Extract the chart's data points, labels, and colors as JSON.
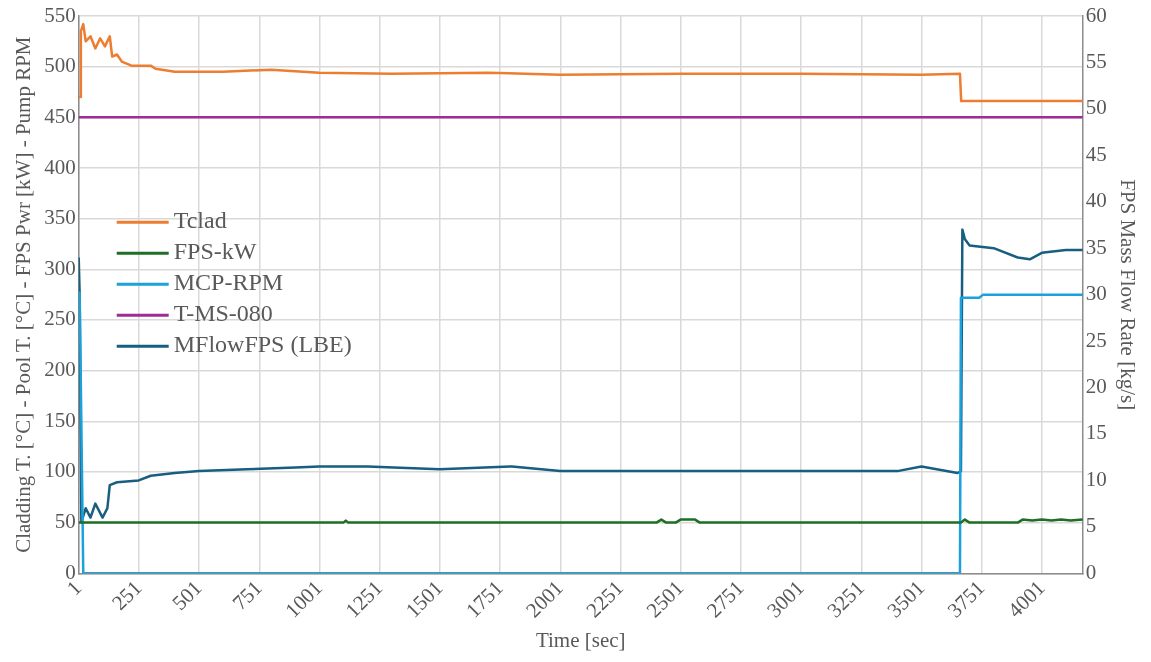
{
  "chart_data": {
    "type": "line",
    "xlabel": "Time [sec]",
    "ylabel": "Cladding T. [°C] - Pool T. [°C] - FPS Pwr [kW] - Pump RPM",
    "y2label": "FPS Mass Flow Rate [kg/s]",
    "xlim": [
      1,
      4170
    ],
    "xticks": [
      1,
      251,
      501,
      751,
      1001,
      1251,
      1501,
      1751,
      2001,
      2251,
      2501,
      2751,
      3001,
      3251,
      3501,
      3751,
      4001
    ],
    "ylim": [
      0,
      550
    ],
    "yticks": [
      0,
      50,
      100,
      150,
      200,
      250,
      300,
      350,
      400,
      450,
      500,
      550
    ],
    "y2lim": [
      0,
      60
    ],
    "y2ticks": [
      0,
      5,
      10,
      15,
      20,
      25,
      30,
      35,
      40,
      45,
      50,
      55,
      60
    ],
    "grid": true,
    "legend": "left",
    "marker": "none",
    "line_style": "solid",
    "series": [
      {
        "name": "Tclad",
        "color": "#ed7d31",
        "x": [
          1,
          8,
          10,
          20,
          30,
          50,
          70,
          90,
          110,
          130,
          140,
          160,
          180,
          220,
          300,
          320,
          400,
          600,
          800,
          1000,
          1300,
          1700,
          2000,
          2500,
          3000,
          3500,
          3660,
          3665,
          4170
        ],
        "values": [
          470,
          470,
          535,
          542,
          525,
          530,
          518,
          528,
          520,
          530,
          510,
          512,
          505,
          501,
          501,
          498,
          495,
          495,
          497,
          494,
          493,
          494,
          492,
          493,
          493,
          492,
          493,
          466,
          466
        ]
      },
      {
        "name": "FPS-kW",
        "color": "#1e6e23",
        "x": [
          1,
          1100,
          1110,
          1120,
          2400,
          2420,
          2440,
          2480,
          2500,
          2560,
          2580,
          3664,
          3680,
          3700,
          3900,
          3920,
          3960,
          4000,
          4040,
          4080,
          4120,
          4170
        ],
        "values": [
          50,
          50,
          52,
          50,
          50,
          53,
          50,
          50,
          53,
          53,
          50,
          50,
          53,
          50,
          50,
          53,
          52,
          53,
          52,
          53,
          52,
          53
        ]
      },
      {
        "name": "MCP-RPM",
        "color": "#1ba1dc",
        "x": [
          1,
          5,
          20,
          3660,
          3664,
          3740,
          3756,
          4170
        ],
        "values": [
          275,
          277,
          0,
          0,
          272,
          272,
          275,
          275
        ]
      },
      {
        "name": "T-MS-080",
        "color": "#a12b96",
        "x": [
          1,
          4170
        ],
        "values": [
          450,
          450
        ]
      },
      {
        "name": "MFlowFPS (LBE)",
        "color": "#175e80",
        "axis": "y2",
        "x": [
          1,
          5,
          12,
          30,
          50,
          70,
          100,
          120,
          130,
          160,
          250,
          300,
          400,
          500,
          700,
          900,
          1000,
          1200,
          1500,
          1800,
          2000,
          2500,
          3000,
          3400,
          3500,
          3650,
          3664,
          3670,
          3680,
          3700,
          3800,
          3900,
          3950,
          4000,
          4100,
          4170
        ],
        "values": [
          34,
          30,
          5.5,
          7,
          6,
          7.5,
          6,
          7,
          9.5,
          9.8,
          10,
          10.5,
          10.8,
          11,
          11.2,
          11.4,
          11.5,
          11.5,
          11.2,
          11.5,
          11,
          11,
          11,
          11,
          11.5,
          10.8,
          11,
          37,
          36,
          35.3,
          35,
          34,
          33.8,
          34.5,
          34.8,
          34.8
        ]
      }
    ]
  }
}
